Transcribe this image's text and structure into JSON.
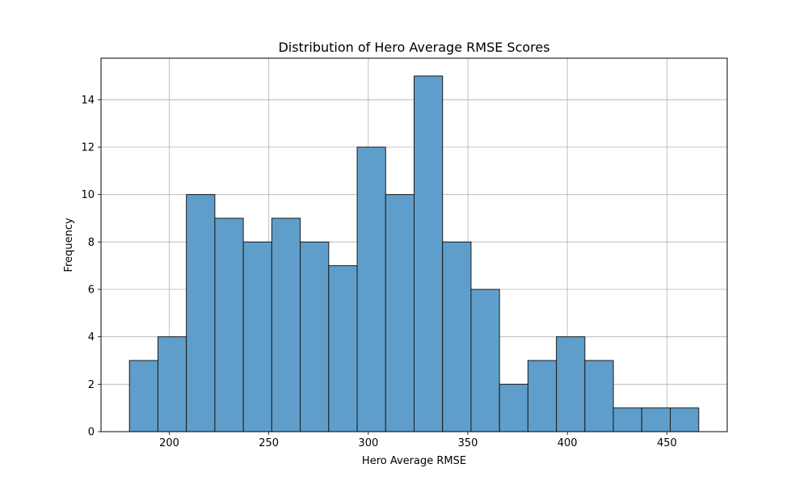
{
  "chart_data": {
    "type": "bar",
    "title": "Distribution of Hero Average RMSE Scores",
    "xlabel": "Hero Average RMSE",
    "ylabel": "Frequency",
    "bin_edges": [
      180,
      194.3,
      208.6,
      222.9,
      237.2,
      251.5,
      265.8,
      280.1,
      294.4,
      308.7,
      323.0,
      337.3,
      351.6,
      365.9,
      380.2,
      394.5,
      408.8,
      423.1,
      437.4,
      451.7,
      466.0
    ],
    "values": [
      3,
      4,
      10,
      9,
      8,
      9,
      8,
      7,
      12,
      10,
      15,
      8,
      6,
      2,
      3,
      4,
      3,
      1,
      1,
      1
    ],
    "xlim": [
      165.7,
      480.3
    ],
    "ylim": [
      0,
      15.75
    ],
    "xticks": [
      200,
      250,
      300,
      350,
      400,
      450
    ],
    "yticks": [
      0,
      2,
      4,
      6,
      8,
      10,
      12,
      14
    ],
    "grid": true,
    "bar_color": "#5f9ecb",
    "edge_color": "#1a1a1a"
  }
}
